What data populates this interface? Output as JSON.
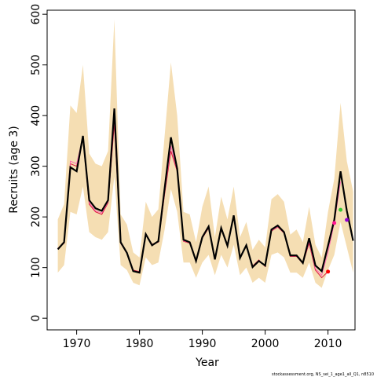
{
  "chart_data": {
    "type": "line",
    "xlabel": "Year",
    "ylabel": "Recruits (age 3)",
    "footnote": "stockassessment.org, NS_sei_1_age1_all_Q1, n8510",
    "x": [
      1967,
      1968,
      1969,
      1970,
      1971,
      1972,
      1973,
      1974,
      1975,
      1976,
      1977,
      1978,
      1979,
      1980,
      1981,
      1982,
      1983,
      1984,
      1985,
      1986,
      1987,
      1988,
      1989,
      1990,
      1991,
      1992,
      1993,
      1994,
      1995,
      1996,
      1997,
      1998,
      1999,
      2000,
      2001,
      2002,
      2003,
      2004,
      2005,
      2006,
      2007,
      2008,
      2009,
      2010,
      2011,
      2012,
      2013,
      2014
    ],
    "band": {
      "color": "#f5deb3",
      "lower": [
        90,
        105,
        210,
        205,
        260,
        170,
        160,
        155,
        170,
        280,
        105,
        95,
        70,
        65,
        120,
        105,
        110,
        175,
        255,
        210,
        110,
        110,
        80,
        110,
        125,
        85,
        125,
        100,
        145,
        85,
        100,
        70,
        80,
        70,
        125,
        130,
        120,
        90,
        90,
        80,
        110,
        70,
        60,
        95,
        125,
        190,
        140,
        90
      ],
      "upper": [
        195,
        225,
        420,
        405,
        500,
        325,
        305,
        300,
        330,
        590,
        205,
        185,
        130,
        120,
        230,
        200,
        215,
        360,
        505,
        400,
        210,
        205,
        150,
        220,
        260,
        160,
        240,
        195,
        260,
        160,
        190,
        135,
        155,
        140,
        235,
        245,
        230,
        165,
        175,
        150,
        220,
        145,
        120,
        210,
        275,
        425,
        310,
        250
      ]
    },
    "series": [
      {
        "color": "#dc143c",
        "values": [
          138,
          148,
          305,
          300,
          355,
          225,
          210,
          205,
          228,
          385,
          148,
          128,
          95,
          92,
          164,
          146,
          150,
          245,
          330,
          290,
          152,
          148,
          115,
          158,
          178,
          118,
          175,
          145,
          200,
          121,
          142,
          103,
          115,
          102,
          172,
          180,
          168,
          122,
          122,
          108,
          148,
          95,
          80,
          92,
          null,
          null,
          null,
          null
        ]
      },
      {
        "color": "#ff69b4",
        "values": [
          137,
          149,
          310,
          305,
          358,
          228,
          212,
          208,
          230,
          400,
          149,
          128,
          94,
          91,
          165,
          145,
          151,
          250,
          340,
          292,
          153,
          149,
          114,
          159,
          179,
          117,
          176,
          144,
          201,
          120,
          143,
          102,
          114,
          103,
          173,
          181,
          169,
          123,
          123,
          108,
          152,
          98,
          85,
          130,
          188,
          270,
          null,
          null
        ]
      },
      {
        "color": "#000000",
        "values": [
          136,
          150,
          298,
          290,
          360,
          233,
          217,
          212,
          233,
          414,
          150,
          129,
          93,
          90,
          166,
          144,
          152,
          256,
          357,
          295,
          155,
          150,
          113,
          160,
          181,
          116,
          178,
          143,
          203,
          119,
          144,
          101,
          113,
          104,
          175,
          183,
          170,
          124,
          124,
          109,
          158,
          104,
          93,
          143,
          194,
          290,
          212,
          153
        ]
      }
    ],
    "points": {
      "x": [
        2010,
        2011,
        2012,
        2013
      ],
      "y": [
        92,
        188,
        214,
        194
      ],
      "colors": [
        "#ff0000",
        "#ff1493",
        "#32cd32",
        "#9400d3"
      ]
    },
    "xlim": [
      1965.3,
      2014.3
    ],
    "ylim": [
      -23,
      608
    ],
    "xticks": [
      1970,
      1980,
      1990,
      2000,
      2010
    ],
    "yticks": [
      0,
      100,
      200,
      300,
      400,
      500,
      600
    ]
  }
}
